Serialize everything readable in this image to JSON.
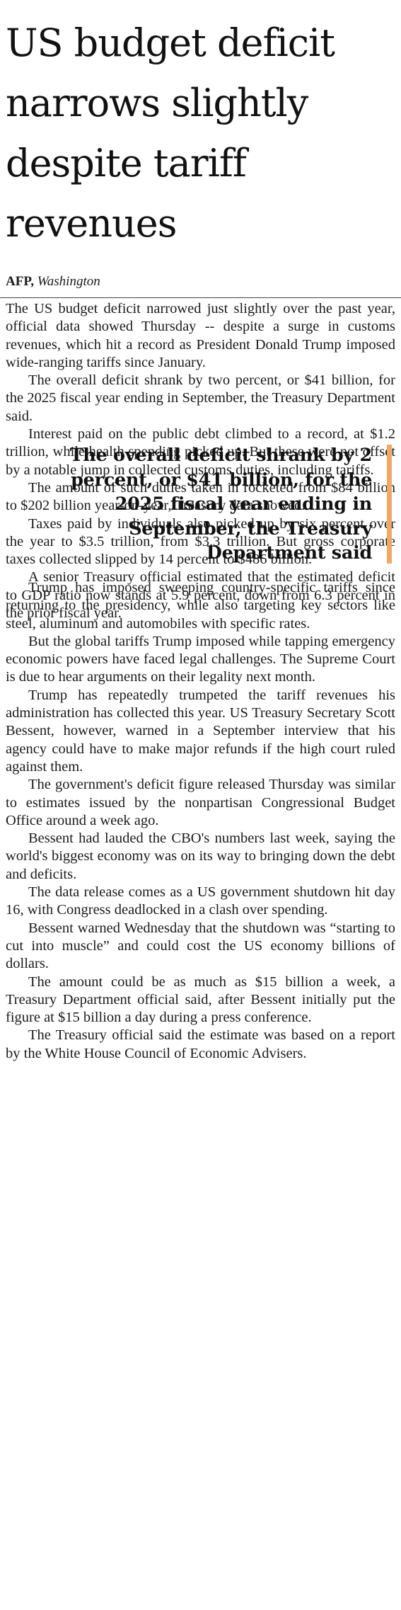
{
  "headline": "US budget deficit narrows slightly despite tariff revenues",
  "byline": {
    "agency": "AFP,",
    "location": "Washington"
  },
  "pull_quote": "The overall deficit shrank by 2 percent, or $41 billion, for the 2025 fiscal year ending in September, the Treasury Department said",
  "accent_color": "#f0a868",
  "paragraphs_before_quote": [
    "The US budget deficit narrowed just slightly over the past year, official data showed Thursday -- despite a surge in customs revenues, which hit a record as President Donald Trump imposed wide-ranging tariffs since January.",
    "The overall deficit shrank by two percent, or $41 billion, for the 2025 fiscal year ending in September, the Treasury Department said.",
    "Interest paid on the public debt climbed to a record, at $1.2 trillion, while health spending picked up. But these were not offset by a notable jump in collected customs duties, including tariffs.",
    "The amount of such duties taken in rocketed from $84 billion to $202 billion year-on-year, Treasury data showed.",
    "Taxes paid by individuals also picked up by six percent over the year to $3.5 trillion, from $3.3 trillion. But gross corporate taxes collected slipped by 14 percent to $486 billion.",
    "A senior Treasury official estimated that the estimated deficit to GDP ratio now stands at 5.9 percent, down from 6.3 percent in the prior fiscal year."
  ],
  "paragraphs_after_quote": [
    "Trump has imposed sweeping country-specific tariffs since returning to the presidency, while also targeting key sectors like steel, aluminum and automobiles with specific rates.",
    "But the global tariffs Trump imposed while tapping emergency economic powers have faced legal challenges. The Supreme Court is due to hear arguments on their legality next month.",
    "Trump has repeatedly trumpeted the tariff revenues his administration has collected this year. US Treasury Secretary Scott Bessent, however, warned in a September interview that his agency could have to make major refunds if the high court ruled against them.",
    "The government's deficit figure released Thursday was similar to estimates issued by the nonpartisan Congressional Budget Office around a week ago.",
    "Bessent had lauded the CBO's numbers last week, saying the world's biggest economy was on its way to bringing down the debt and deficits.",
    "The data release comes as a US government shutdown hit day 16, with Congress deadlocked in a clash over spending.",
    "Bessent warned Wednesday that the shutdown was “starting to cut into muscle” and could cost the US economy billions of dollars.",
    "The amount could be as much as $15 billion a week, a Treasury Department official said, after Bessent initially put the figure at $15 billion a day during a press conference.",
    "The Treasury official said the estimate was based on a report by the White House Council of Economic Advisers."
  ]
}
